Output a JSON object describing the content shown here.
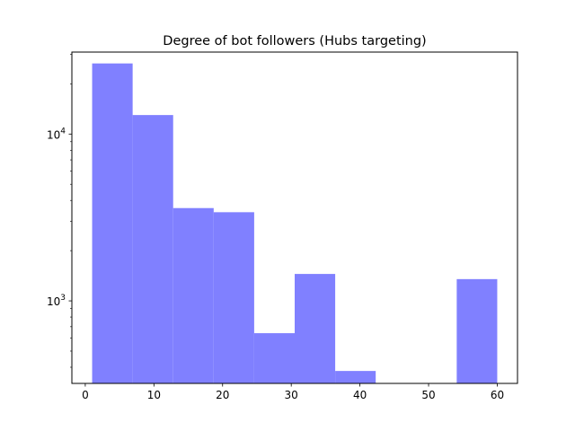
{
  "chart_data": {
    "type": "bar",
    "title": "Degree of bot followers (Hubs targeting)",
    "xlabel": "",
    "ylabel": "",
    "yscale": "log",
    "xlim": [
      -1.95,
      62.95
    ],
    "ylim": [
      320,
      31000
    ],
    "grid": false,
    "legend": "none",
    "bar_color": "#8080ff",
    "bins": [
      {
        "start": 1.0,
        "end": 6.9,
        "count": 26500
      },
      {
        "start": 6.9,
        "end": 12.8,
        "count": 13000
      },
      {
        "start": 12.8,
        "end": 18.7,
        "count": 3600
      },
      {
        "start": 18.7,
        "end": 24.6,
        "count": 3400
      },
      {
        "start": 24.6,
        "end": 30.5,
        "count": 640
      },
      {
        "start": 30.5,
        "end": 36.4,
        "count": 1450
      },
      {
        "start": 36.4,
        "end": 42.3,
        "count": 380
      },
      {
        "start": 42.3,
        "end": 48.2,
        "count": 0
      },
      {
        "start": 48.2,
        "end": 54.1,
        "count": 0
      },
      {
        "start": 54.1,
        "end": 60.0,
        "count": 1350
      }
    ],
    "x_ticks": [
      {
        "value": 0,
        "label": "0"
      },
      {
        "value": 10,
        "label": "10"
      },
      {
        "value": 20,
        "label": "20"
      },
      {
        "value": 30,
        "label": "30"
      },
      {
        "value": 40,
        "label": "40"
      },
      {
        "value": 50,
        "label": "50"
      },
      {
        "value": 60,
        "label": "60"
      }
    ],
    "y_major_ticks": [
      {
        "value": 1000,
        "base": "10",
        "exp": "3"
      },
      {
        "value": 10000,
        "base": "10",
        "exp": "4"
      }
    ],
    "y_minor_ticks": [
      400,
      500,
      600,
      700,
      800,
      900,
      2000,
      3000,
      4000,
      5000,
      6000,
      7000,
      8000,
      9000,
      20000,
      30000
    ]
  }
}
